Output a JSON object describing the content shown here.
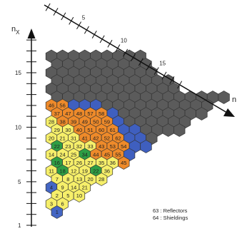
{
  "axes": {
    "vertical_name": "n",
    "vertical_subscript": "X",
    "vertical_ticks": [
      "1",
      "5",
      "10",
      "15"
    ],
    "diagonal_name": "n",
    "diagonal_ticks": [
      "5",
      "10",
      "15"
    ]
  },
  "legend": [
    "63 : Reflectors",
    "64 : Shieldings"
  ],
  "colors": {
    "reflector": "#5b5b5b",
    "shielding": "#3f5fbf",
    "orange": "#ee8a2a",
    "yellow": "#f6ef6a",
    "green": "#2f9e44",
    "blue_fuel": "#4466c4",
    "outline": "#333333"
  },
  "core_rows": [
    [
      "46",
      "56"
    ],
    [
      "37",
      "47",
      "48",
      "57",
      "58"
    ],
    [
      "28",
      "38",
      "39",
      "49",
      "50",
      "59"
    ],
    [
      "29",
      "30",
      "40",
      "51",
      "60",
      "61"
    ],
    [
      "20",
      "21",
      "31",
      "41",
      "42",
      "52",
      "62"
    ],
    [
      "22",
      "23",
      "32",
      "33",
      "43",
      "53",
      "54"
    ],
    [
      "14",
      "24",
      "25",
      "34",
      "44",
      "45",
      "55"
    ],
    [
      "16",
      "17",
      "26",
      "27",
      "35",
      "36",
      "45"
    ],
    [
      "11",
      "18",
      "12",
      "19",
      "22",
      "36"
    ],
    [
      "7",
      "8",
      "13",
      "20",
      "28"
    ],
    [
      "4",
      "9",
      "14",
      "21"
    ],
    [
      "2",
      "5",
      "10",
      "15"
    ],
    [
      "3",
      "6"
    ],
    [
      "1"
    ]
  ]
}
